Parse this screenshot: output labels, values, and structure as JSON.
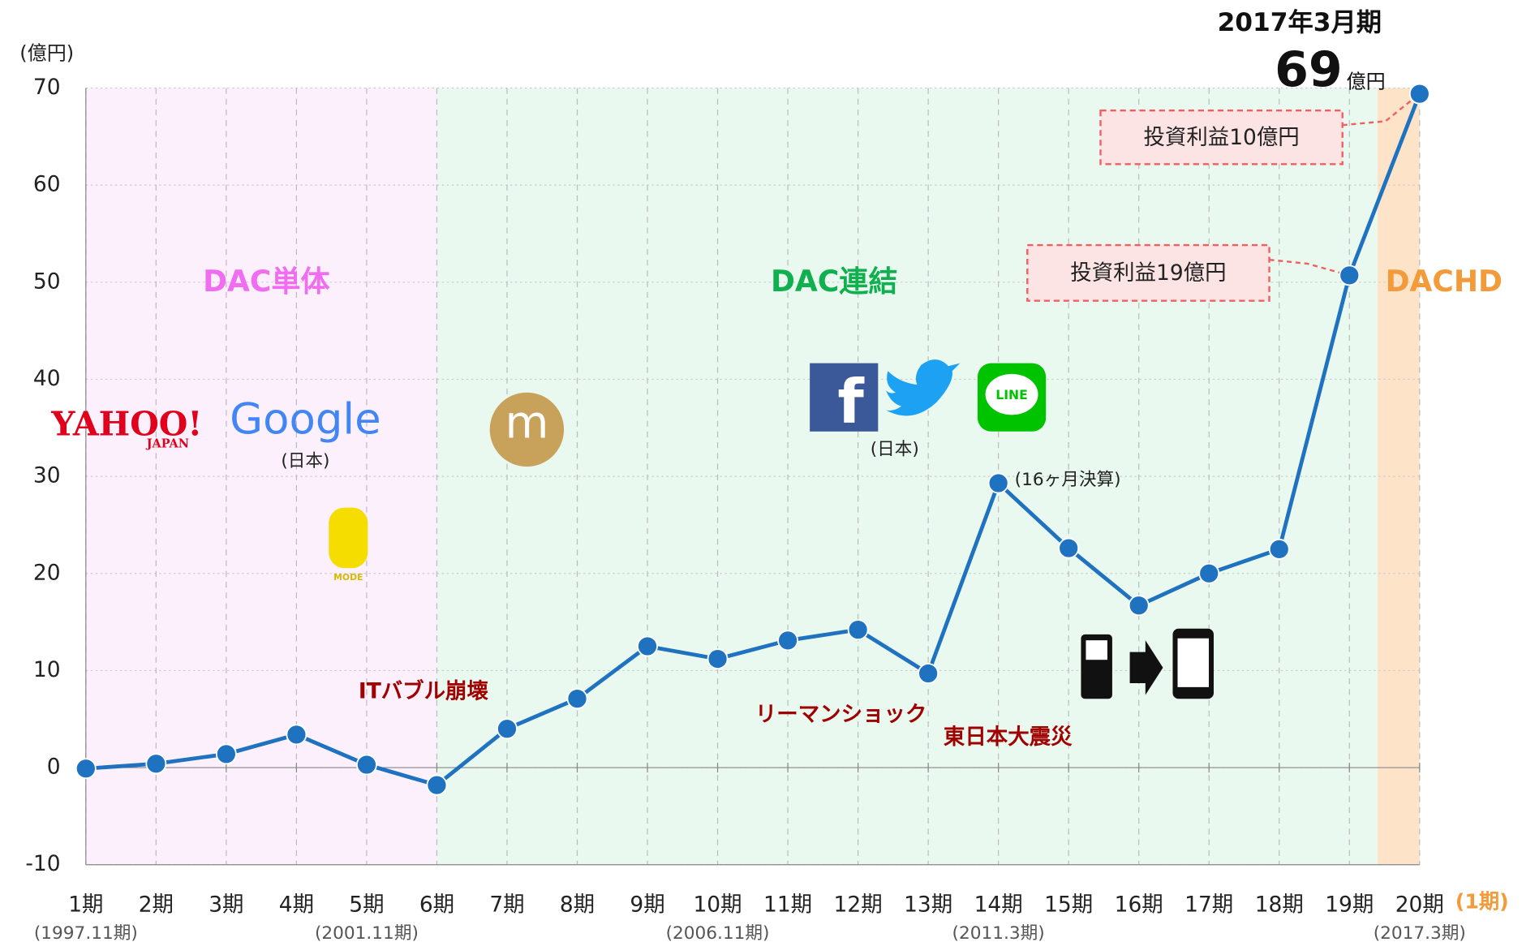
{
  "chart_data": {
    "type": "line",
    "unit_label": "(億円)",
    "categories": [
      "1期",
      "2期",
      "3期",
      "4期",
      "5期",
      "6期",
      "7期",
      "8期",
      "9期",
      "10期",
      "11期",
      "12期",
      "13期",
      "14期",
      "15期",
      "16期",
      "17期",
      "18期",
      "19期",
      "20期"
    ],
    "category_sublabels": [
      "(1997.11期)",
      null,
      null,
      null,
      "(2001.11期)",
      null,
      null,
      null,
      null,
      "(2006.11期)",
      null,
      null,
      null,
      "(2011.3期)",
      null,
      null,
      null,
      null,
      null,
      "(2017.3期)"
    ],
    "last_category_note": "(1期)",
    "values": [
      -0.1,
      0.4,
      1.4,
      3.4,
      0.3,
      -1.8,
      4.0,
      7.1,
      12.5,
      11.2,
      13.1,
      14.2,
      9.7,
      29.3,
      22.6,
      16.7,
      20.0,
      22.5,
      50.7,
      69.4
    ],
    "color": "#1f72bf",
    "ylim": [
      -10,
      70
    ],
    "yticks": [
      -10,
      0,
      10,
      20,
      30,
      40,
      50,
      60,
      70
    ],
    "grid": true,
    "regions": [
      "DAC単体",
      "DAC連結",
      "DACHD"
    ],
    "events": [
      "ITバブル崩壊",
      "リーマンショック",
      "東日本大震災"
    ],
    "highlight": {
      "period": "2017年3月期",
      "value_label": "69",
      "unit": "億円"
    },
    "callouts": [
      "投資利益10億円",
      "投資利益19億円"
    ],
    "notes": [
      "(16ヶ月決算)",
      "(日本)",
      "(日本)"
    ],
    "logos": [
      "YAHOO!",
      "JAPAN",
      "Google",
      "f",
      "LINE",
      "m",
      "MODE"
    ]
  }
}
